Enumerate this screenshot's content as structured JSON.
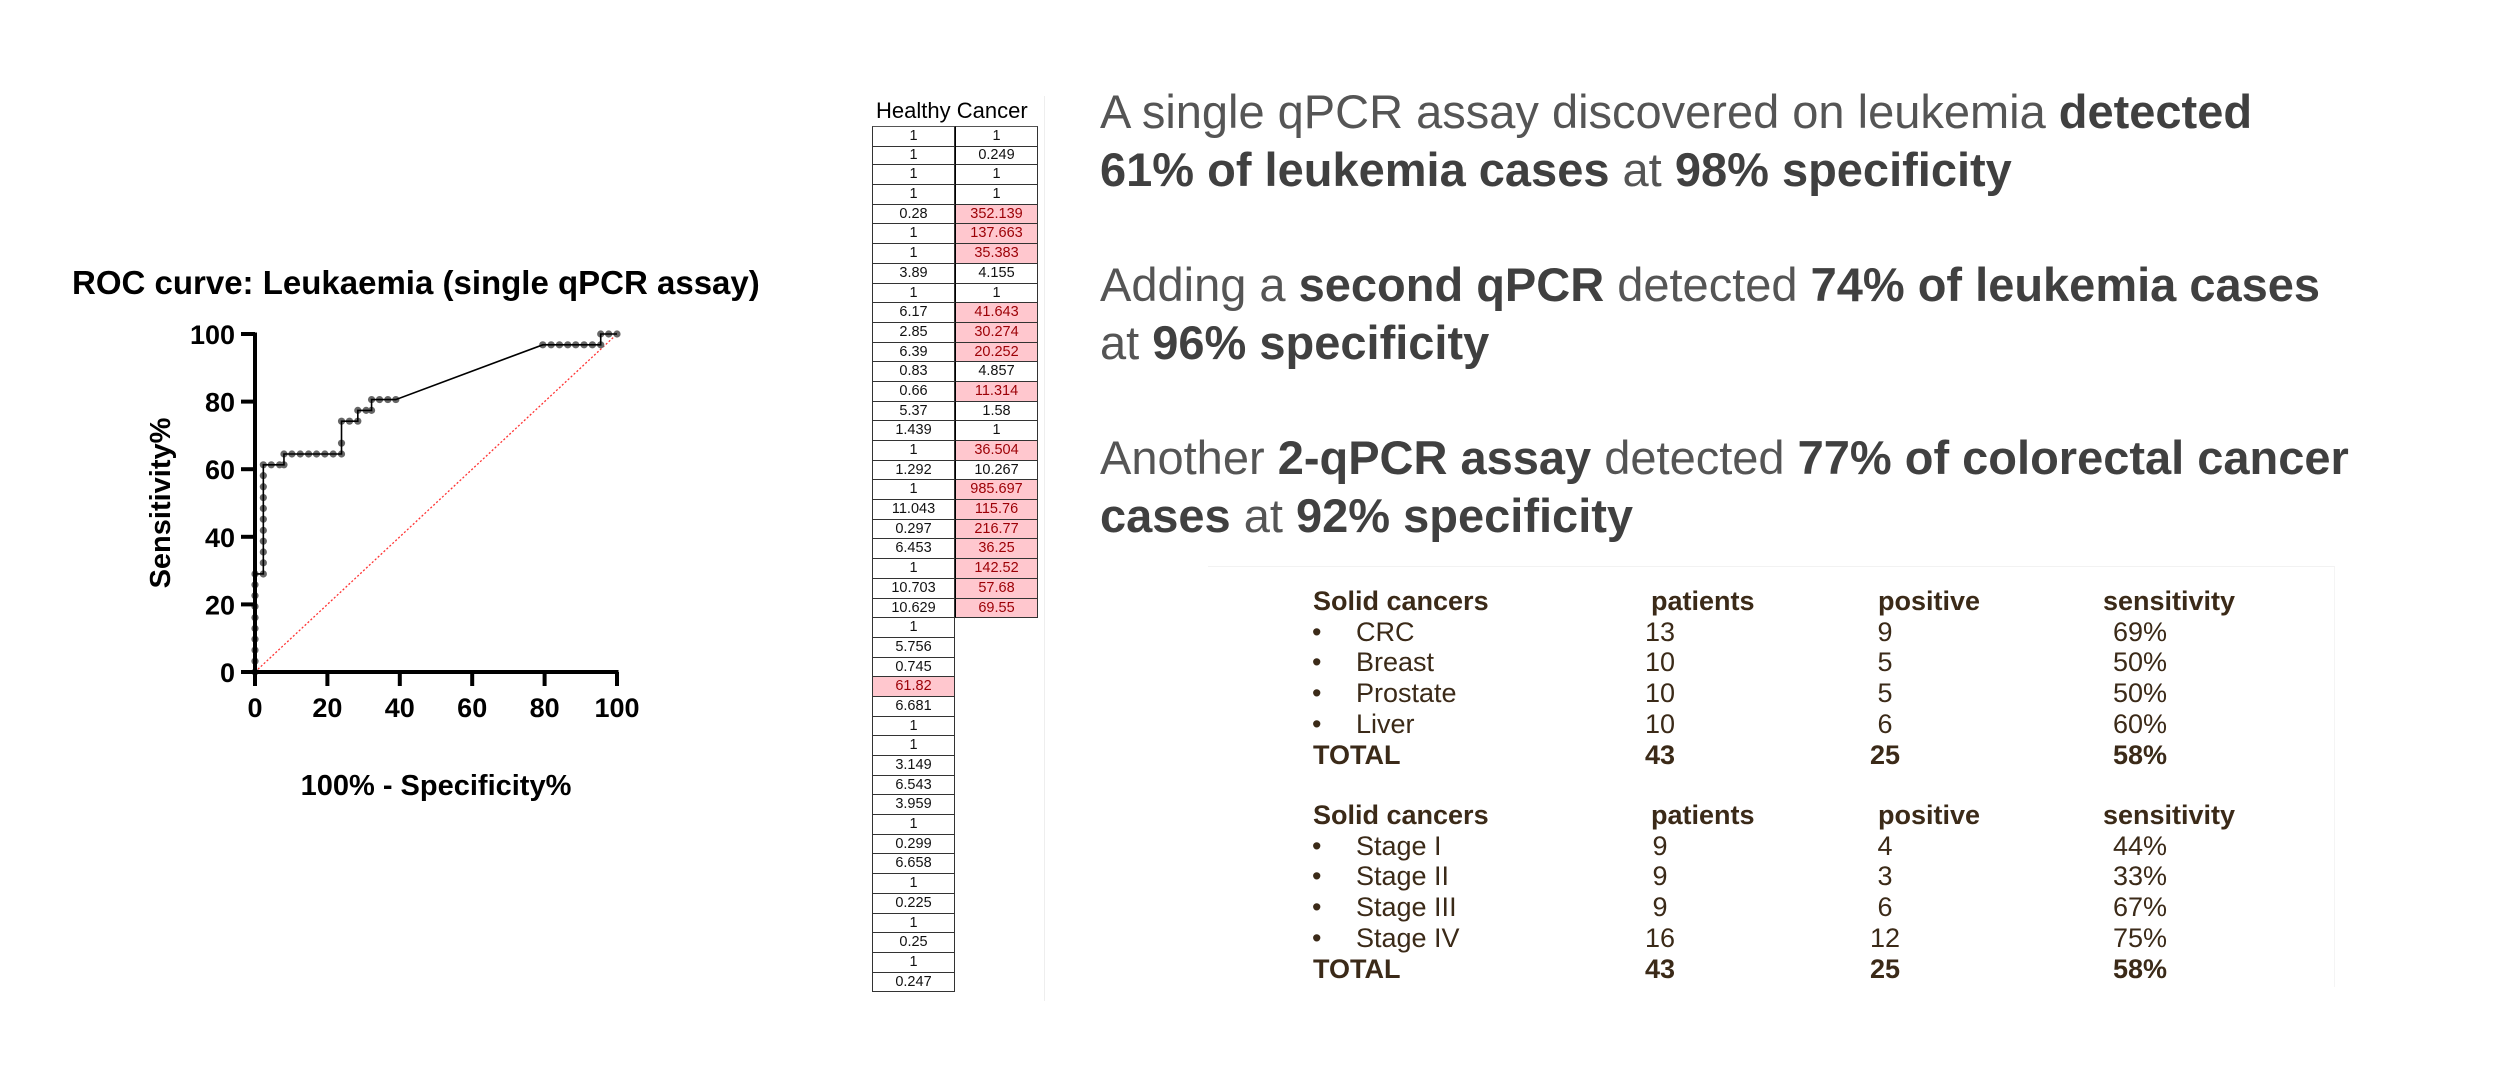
{
  "chart_data": {
    "type": "line",
    "title": "ROC curve: Leukaemia (single qPCR assay)",
    "xlabel": "100% - Specificity%",
    "ylabel": "Sensitivity%",
    "xlim": [
      0,
      100
    ],
    "ylim": [
      0,
      100
    ],
    "xticks": [
      "0",
      "20",
      "40",
      "60",
      "80",
      "100"
    ],
    "yticks": [
      "0",
      "20",
      "40",
      "60",
      "80",
      "100"
    ],
    "grid": false,
    "colors": {
      "curve": "#000000",
      "markers": "#666666",
      "reference_line": "#ff3333"
    },
    "reference_line": [
      [
        0,
        0
      ],
      [
        100,
        100
      ]
    ],
    "points": [
      [
        0,
        0
      ],
      [
        0,
        3.2
      ],
      [
        0,
        6.5
      ],
      [
        0,
        9.7
      ],
      [
        0,
        12.9
      ],
      [
        0,
        16.1
      ],
      [
        0,
        19.4
      ],
      [
        0,
        22.6
      ],
      [
        0,
        25.8
      ],
      [
        0,
        29.0
      ],
      [
        2.3,
        29.0
      ],
      [
        2.3,
        32.3
      ],
      [
        2.3,
        35.5
      ],
      [
        2.3,
        38.7
      ],
      [
        2.3,
        41.9
      ],
      [
        2.3,
        45.2
      ],
      [
        2.3,
        48.4
      ],
      [
        2.3,
        51.6
      ],
      [
        2.3,
        54.8
      ],
      [
        2.3,
        58.1
      ],
      [
        2.3,
        61.3
      ],
      [
        4.5,
        61.3
      ],
      [
        6.8,
        61.3
      ],
      [
        8.0,
        61.3
      ],
      [
        8.0,
        64.5
      ],
      [
        10.2,
        64.5
      ],
      [
        12.5,
        64.5
      ],
      [
        14.8,
        64.5
      ],
      [
        17.0,
        64.5
      ],
      [
        19.3,
        64.5
      ],
      [
        21.6,
        64.5
      ],
      [
        23.9,
        64.5
      ],
      [
        23.9,
        67.7
      ],
      [
        23.9,
        74.2
      ],
      [
        26.1,
        74.2
      ],
      [
        28.4,
        74.2
      ],
      [
        28.4,
        77.4
      ],
      [
        30.7,
        77.4
      ],
      [
        32.2,
        77.4
      ],
      [
        32.2,
        80.6
      ],
      [
        34.4,
        80.6
      ],
      [
        36.7,
        80.6
      ],
      [
        38.9,
        80.6
      ],
      [
        79.5,
        96.8
      ],
      [
        81.8,
        96.8
      ],
      [
        84.1,
        96.8
      ],
      [
        86.4,
        96.8
      ],
      [
        88.6,
        96.8
      ],
      [
        90.9,
        96.8
      ],
      [
        93.2,
        96.8
      ],
      [
        95.5,
        96.8
      ],
      [
        95.5,
        100
      ],
      [
        97.7,
        100
      ],
      [
        100,
        100
      ]
    ]
  },
  "data_table": {
    "headers": [
      "Healthy",
      "Cancer"
    ],
    "healthy": [
      "1",
      "1",
      "1",
      "1",
      "0.28",
      "1",
      "1",
      "3.89",
      "1",
      "6.17",
      "2.85",
      "6.39",
      "0.83",
      "0.66",
      "5.37",
      "1.439",
      "1",
      "1.292",
      "1",
      "11.043",
      "0.297",
      "6.453",
      "1",
      "10.703",
      "10.629",
      "1",
      "5.756",
      "0.745",
      "61.82",
      "6.681",
      "1",
      "1",
      "3.149",
      "6.543",
      "3.959",
      "1",
      "0.299",
      "6.658",
      "1",
      "0.225",
      "1",
      "0.25",
      "1",
      "0.247"
    ],
    "healthy_highlighted": [
      28
    ],
    "cancer": [
      "1",
      "0.249",
      "1",
      "1",
      "352.139",
      "137.663",
      "35.383",
      "4.155",
      "1",
      "41.643",
      "30.274",
      "20.252",
      "4.857",
      "11.314",
      "1.58",
      "1",
      "36.504",
      "10.267",
      "985.697",
      "115.76",
      "216.77",
      "36.25",
      "142.52",
      "57.68",
      "69.55"
    ],
    "cancer_highlighted": [
      4,
      5,
      6,
      9,
      10,
      11,
      13,
      16,
      18,
      19,
      20,
      21,
      22,
      23,
      24
    ],
    "highlight_color": "#ffc7ce",
    "highlight_text_color": "#9c0006"
  },
  "headlines": [
    {
      "parts": [
        {
          "t": "A single qPCR assay discovered on leukemia ",
          "b": false
        },
        {
          "t": "detected 61% of leukemia cases",
          "b": true
        },
        {
          "t": " at ",
          "b": false
        },
        {
          "t": "98% specificity",
          "b": true
        }
      ]
    },
    {
      "parts": [
        {
          "t": "Adding a ",
          "b": false
        },
        {
          "t": "second qPCR",
          "b": true
        },
        {
          "t": " detected ",
          "b": false
        },
        {
          "t": "74% of leukemia cases",
          "b": true
        },
        {
          "t": " at ",
          "b": false
        },
        {
          "t": "96% specificity",
          "b": true
        }
      ]
    },
    {
      "parts": [
        {
          "t": "Another ",
          "b": false
        },
        {
          "t": "2-qPCR assay",
          "b": true
        },
        {
          "t": " detected ",
          "b": false
        },
        {
          "t": "77% of colorectal cancer cases",
          "b": true
        },
        {
          "t": " at ",
          "b": false
        },
        {
          "t": "92% specificity",
          "b": true
        }
      ]
    }
  ],
  "solid_tables": [
    {
      "columns": [
        "Solid cancers",
        "patients",
        "positive",
        "sensitivity"
      ],
      "rows": [
        [
          "CRC",
          "13",
          "9",
          "69%"
        ],
        [
          "Breast",
          "10",
          "5",
          "50%"
        ],
        [
          "Prostate",
          "10",
          "5",
          "50%"
        ],
        [
          "Liver",
          "10",
          "6",
          "60%"
        ]
      ],
      "total": [
        "TOTAL",
        "43",
        "25",
        "58%"
      ]
    },
    {
      "columns": [
        "Solid cancers",
        "patients",
        "positive",
        "sensitivity"
      ],
      "rows": [
        [
          "Stage I",
          "9",
          "4",
          "44%"
        ],
        [
          "Stage II",
          "9",
          "3",
          "33%"
        ],
        [
          "Stage III",
          "9",
          "6",
          "67%"
        ],
        [
          "Stage IV",
          "16",
          "12",
          "75%"
        ]
      ],
      "total": [
        "TOTAL",
        "43",
        "25",
        "58%"
      ]
    }
  ],
  "text_color": "#3b2a18"
}
